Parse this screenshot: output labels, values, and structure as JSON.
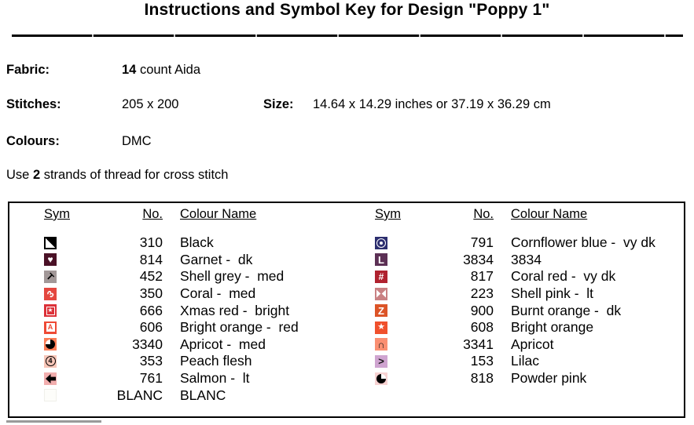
{
  "title": "Instructions and Symbol Key for Design \"Poppy 1\"",
  "meta": {
    "fabric_label": "Fabric:",
    "fabric_bold": "14",
    "fabric_rest": " count Aida",
    "stitches_label": "Stitches:",
    "stitches_value": "205 x 200",
    "size_label": "Size:",
    "size_value": "14.64 x 14.29 inches or 37.19 x 36.29 cm",
    "colours_label": "Colours:",
    "colours_value": "DMC",
    "strands_prefix": "Use ",
    "strands_bold": "2",
    "strands_suffix": " strands of thread for cross stitch"
  },
  "key_table": {
    "headers": {
      "sym": "Sym",
      "no": "No.",
      "name": "Colour Name"
    },
    "left_rows": [
      {
        "no": "310",
        "name": "Black",
        "sym": {
          "icon": "diagonal-triangle-icon",
          "type": "triangle-box",
          "bg": "#ffffff",
          "border": "#000000",
          "tri": "#000000"
        }
      },
      {
        "no": "814",
        "name": "Garnet -  dk",
        "sym": {
          "icon": "heart-icon",
          "type": "char",
          "bg": "#4a1126",
          "char": "♥",
          "fg": "#ffffff",
          "size": 12
        }
      },
      {
        "no": "452",
        "name": "Shell grey -  med",
        "sym": {
          "icon": "rotated-t-icon",
          "type": "char",
          "bg": "#a29898",
          "char": "T",
          "fg": "#000000",
          "size": 12,
          "bold": true,
          "rotate": 45
        }
      },
      {
        "no": "350",
        "name": "Coral -  med",
        "sym": {
          "icon": "rotated-3-icon",
          "type": "char",
          "bg": "#e4473f",
          "char": "3",
          "fg": "#ffffff",
          "size": 12,
          "bold": true,
          "rotate": -45
        }
      },
      {
        "no": "666",
        "name": "Xmas red -  bright",
        "sym": {
          "icon": "boxed-star-icon",
          "type": "boxed-star",
          "bg": "#dc3138",
          "fg": "#ffffff"
        }
      },
      {
        "no": "606",
        "name": "Bright orange -  red",
        "sym": {
          "icon": "boxed-a-icon",
          "type": "boxed-char",
          "bg": "#ee4a35",
          "char": "A",
          "fg": "#ee4a35",
          "boxbg": "#ffffff"
        }
      },
      {
        "no": "3340",
        "name": "Apricot -  med",
        "sym": {
          "icon": "pie-quarter-icon",
          "type": "pie",
          "bg": "#fc7e58",
          "circle": "#000000",
          "wedge": "#ffffff",
          "from": 270
        }
      },
      {
        "no": "353",
        "name": "Peach flesh",
        "sym": {
          "icon": "circled-4-icon",
          "type": "circled-char",
          "bg": "#f8c6b8",
          "char": "4",
          "fg": "#000000"
        }
      },
      {
        "no": "761",
        "name": "Salmon -  lt",
        "sym": {
          "icon": "left-arrow-icon",
          "type": "arrow-left",
          "bg": "#f2aeae",
          "fg": "#000000"
        }
      },
      {
        "no": "BLANC",
        "name": "BLANC",
        "sym": {
          "icon": "blank-swatch",
          "type": "blank",
          "bg": "#fdfdfa"
        }
      }
    ],
    "right_rows": [
      {
        "no": "791",
        "name": "Cornflower blue -  vy dk",
        "sym": {
          "icon": "circle-dot-icon",
          "type": "circle-dot",
          "bg": "#2c2e6f",
          "fg": "#ffffff"
        }
      },
      {
        "no": "3834",
        "name": "3834",
        "sym": {
          "icon": "block-l-icon",
          "type": "char",
          "bg": "#5c3055",
          "char": "L",
          "fg": "#ffffff",
          "size": 13,
          "bold": true
        }
      },
      {
        "no": "817",
        "name": "Coral red -  vy dk",
        "sym": {
          "icon": "hash-icon",
          "type": "char",
          "bg": "#b0222f",
          "char": "#",
          "fg": "#ffffff",
          "size": 12,
          "bold": true
        }
      },
      {
        "no": "223",
        "name": "Shell pink -  lt",
        "sym": {
          "icon": "bowtie-icon",
          "type": "bowtie",
          "bg": "#c98183",
          "fg": "#ffffff"
        }
      },
      {
        "no": "900",
        "name": "Burnt orange -  dk",
        "sym": {
          "icon": "letter-z-icon",
          "type": "char",
          "bg": "#dc5427",
          "char": "Z",
          "fg": "#ffffff",
          "size": 13,
          "bold": true
        }
      },
      {
        "no": "608",
        "name": "Bright orange",
        "sym": {
          "icon": "star-icon",
          "type": "char",
          "bg": "#f0502c",
          "char": "★",
          "fg": "#ffffff",
          "size": 11
        }
      },
      {
        "no": "3341",
        "name": "Apricot",
        "sym": {
          "icon": "cap-icon",
          "type": "char",
          "bg": "#fa8f72",
          "char": "∩",
          "fg": "#1a1a1a",
          "size": 13,
          "bold": true
        }
      },
      {
        "no": "153",
        "name": "Lilac",
        "sym": {
          "icon": "greater-than-icon",
          "type": "char",
          "bg": "#cfa4d0",
          "char": ">",
          "fg": "#1a1a1a",
          "size": 13,
          "bold": true
        }
      },
      {
        "no": "818",
        "name": "Powder pink",
        "sym": {
          "icon": "pie-quarter-icon",
          "type": "pie",
          "bg": "#f7d2d2",
          "circle": "#000000",
          "wedge": "#ffffff",
          "from": 0
        }
      }
    ]
  }
}
